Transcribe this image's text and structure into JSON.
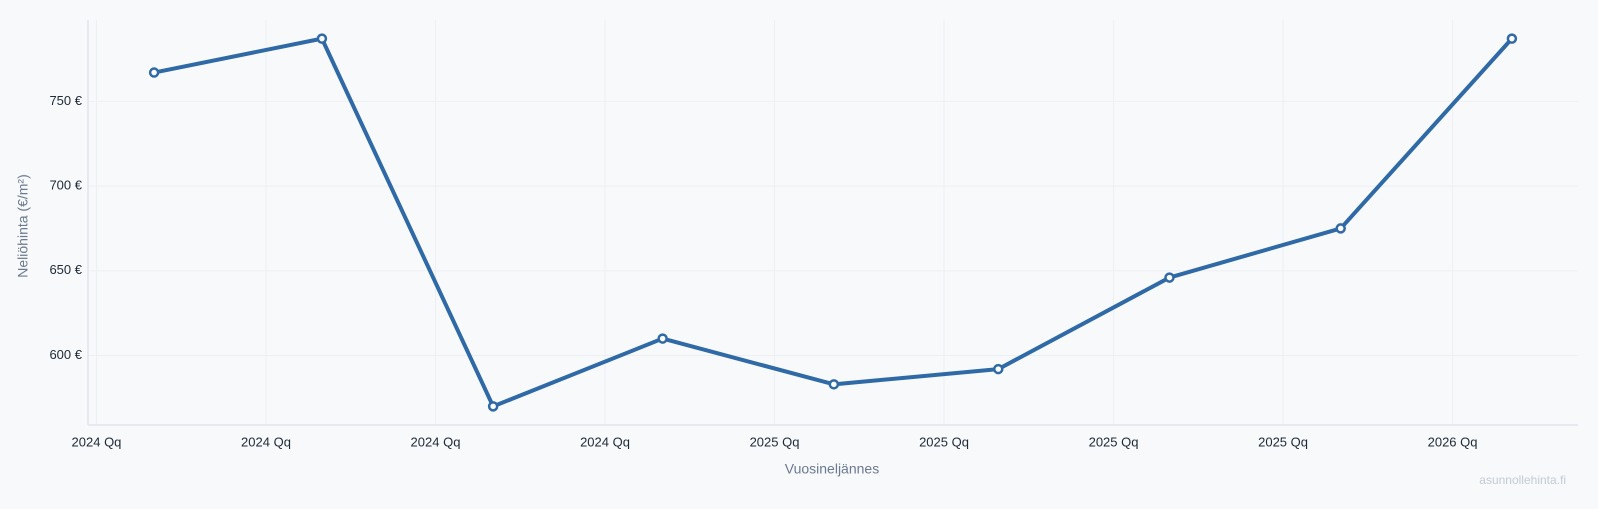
{
  "chart_data": {
    "type": "line",
    "y_label": "Neliöhinta (€/m²)",
    "x_label": "Vuosineljännes",
    "watermark": "asunnollehinta.fi",
    "x": [
      0.34,
      1.33,
      2.34,
      3.34,
      4.35,
      5.32,
      6.33,
      7.34,
      8.35
    ],
    "series": [
      {
        "color": "#2f6aa6",
        "values": [
          767,
          787,
          570,
          610,
          583,
          592,
          646,
          675,
          787
        ]
      }
    ],
    "xlim": [
      -0.05,
      8.74
    ],
    "xticks": [
      {
        "value": 0,
        "label": "2024 Qq"
      },
      {
        "value": 1,
        "label": "2024 Qq"
      },
      {
        "value": 2,
        "label": "2024 Qq"
      },
      {
        "value": 3,
        "label": "2024 Qq"
      },
      {
        "value": 4,
        "label": "2025 Qq"
      },
      {
        "value": 5,
        "label": "2025 Qq"
      },
      {
        "value": 6,
        "label": "2025 Qq"
      },
      {
        "value": 7,
        "label": "2025 Qq"
      },
      {
        "value": 8,
        "label": "2026 Qq"
      }
    ],
    "ylim": [
      559,
      798
    ],
    "yticks": [
      {
        "value": 600,
        "label": "600 €"
      },
      {
        "value": 650,
        "label": "650 €"
      },
      {
        "value": 700,
        "label": "700 €"
      },
      {
        "value": 750,
        "label": "750 €"
      }
    ],
    "grid": true
  }
}
